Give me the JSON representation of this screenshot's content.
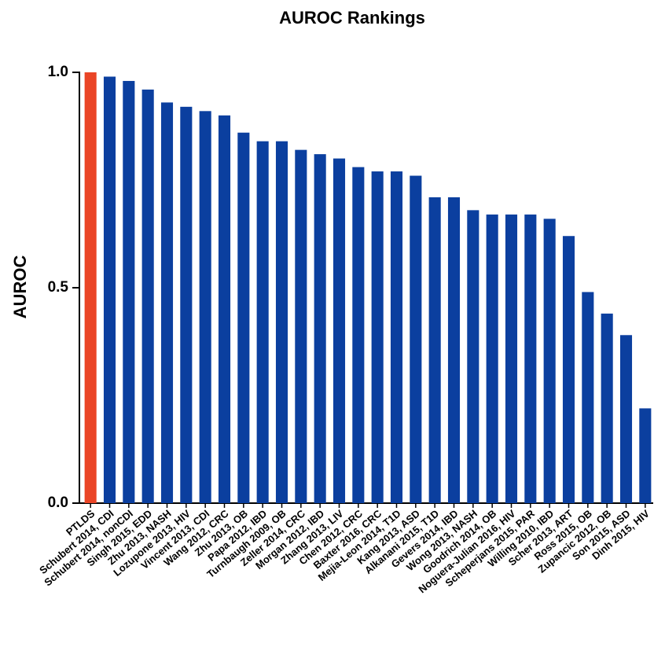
{
  "chart_data": {
    "type": "bar",
    "title": "AUROC Rankings",
    "y_label": "AUROC",
    "categories": [
      "PTLDS",
      "Schubert 2014, CDI",
      "Schubert 2014, nonCDI",
      "Singh 2015, EDD",
      "Zhu 2013, NASH",
      "Lozupone 2013, HIV",
      "Vincent 2013, CDI",
      "Wang 2012, CRC",
      "Zhu 2013, OB",
      "Papa 2012, IBD",
      "Turnbaugh 2009, OB",
      "Zeller 2014, CRC",
      "Morgan 2012, IBD",
      "Zhang 2013, LIV",
      "Chen 2012, CRC",
      "Baxter 2016, CRC",
      "Mejia-Leon 2014, T1D",
      "Kang 2013, ASD",
      "Alkanani 2015, T1D",
      "Gevers 2014, IBD",
      "Wong 2013, NASH",
      "Goodrich 2014, OB",
      "Noguera-Julian 2016, HIV",
      "Scheperjans 2015, PAR",
      "Willing 2010, IBD",
      "Scher 2013, ART",
      "Ross 2015, OB",
      "Zupancic 2012, OB",
      "Son 2015, ASD",
      "Dinh 2015, HIV"
    ],
    "values": [
      1.0,
      0.99,
      0.98,
      0.96,
      0.93,
      0.92,
      0.91,
      0.9,
      0.86,
      0.84,
      0.84,
      0.82,
      0.81,
      0.8,
      0.78,
      0.77,
      0.77,
      0.76,
      0.71,
      0.71,
      0.68,
      0.67,
      0.67,
      0.67,
      0.66,
      0.62,
      0.49,
      0.44,
      0.39,
      0.22
    ],
    "colors": [
      "#ea4526",
      "#0b3f9f",
      "#0b3f9f",
      "#0b3f9f",
      "#0b3f9f",
      "#0b3f9f",
      "#0b3f9f",
      "#0b3f9f",
      "#0b3f9f",
      "#0b3f9f",
      "#0b3f9f",
      "#0b3f9f",
      "#0b3f9f",
      "#0b3f9f",
      "#0b3f9f",
      "#0b3f9f",
      "#0b3f9f",
      "#0b3f9f",
      "#0b3f9f",
      "#0b3f9f",
      "#0b3f9f",
      "#0b3f9f",
      "#0b3f9f",
      "#0b3f9f",
      "#0b3f9f",
      "#0b3f9f",
      "#0b3f9f",
      "#0b3f9f",
      "#0b3f9f",
      "#0b3f9f"
    ],
    "ylim": [
      0,
      1
    ],
    "yticks": [
      {
        "value": 0,
        "label": "0.0"
      },
      0.5,
      {
        "value": 1,
        "label": "1.0"
      }
    ],
    "grid": false
  }
}
